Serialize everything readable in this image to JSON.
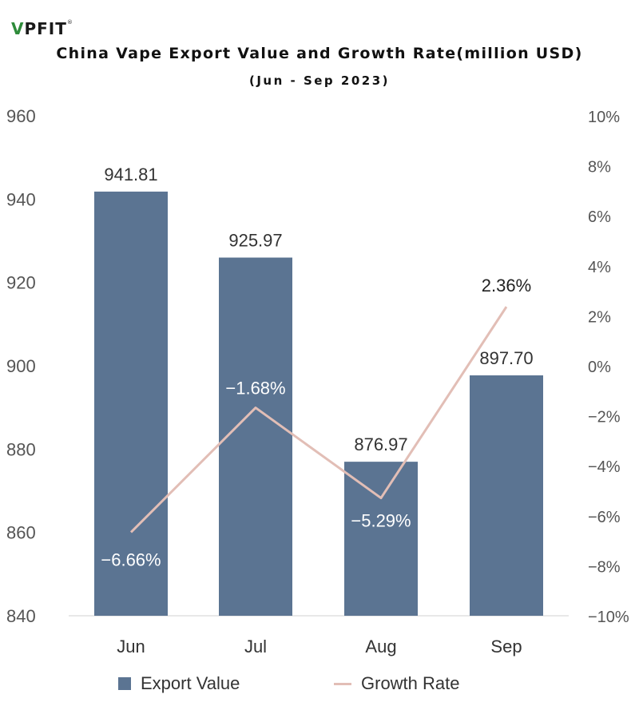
{
  "logo": {
    "text": "PFIT",
    "mark": "V",
    "reg": "®"
  },
  "chart_data": {
    "type": "bar",
    "title": "China Vape Export Value and Growth Rate(million USD)",
    "subtitle": "(Jun - Sep 2023)",
    "categories": [
      "Jun",
      "Jul",
      "Aug",
      "Sep"
    ],
    "series": [
      {
        "name": "Export Value",
        "type": "bar",
        "axis": "left",
        "color": "#5b7492",
        "values": [
          941.81,
          925.97,
          876.97,
          897.7
        ],
        "labels": [
          "941.81",
          "925.97",
          "876.97",
          "897.70"
        ]
      },
      {
        "name": "Growth Rate",
        "type": "line",
        "axis": "right",
        "color": "#e2beb6",
        "values": [
          -6.66,
          -1.68,
          -5.29,
          2.36
        ],
        "labels": [
          "−6.66%",
          "−1.68%",
          "−5.29%",
          "2.36%"
        ]
      }
    ],
    "ylim": [
      840,
      960
    ],
    "yticks": [
      "960",
      "940",
      "920",
      "900",
      "880",
      "860",
      "840"
    ],
    "y2lim": [
      -10,
      10
    ],
    "y2ticks": [
      "10%",
      "8%",
      "6%",
      "4%",
      "2%",
      "0%",
      "−2%",
      "−4%",
      "−6%",
      "−8%",
      "−10%"
    ],
    "grid": false,
    "legend_position": "bottom"
  }
}
